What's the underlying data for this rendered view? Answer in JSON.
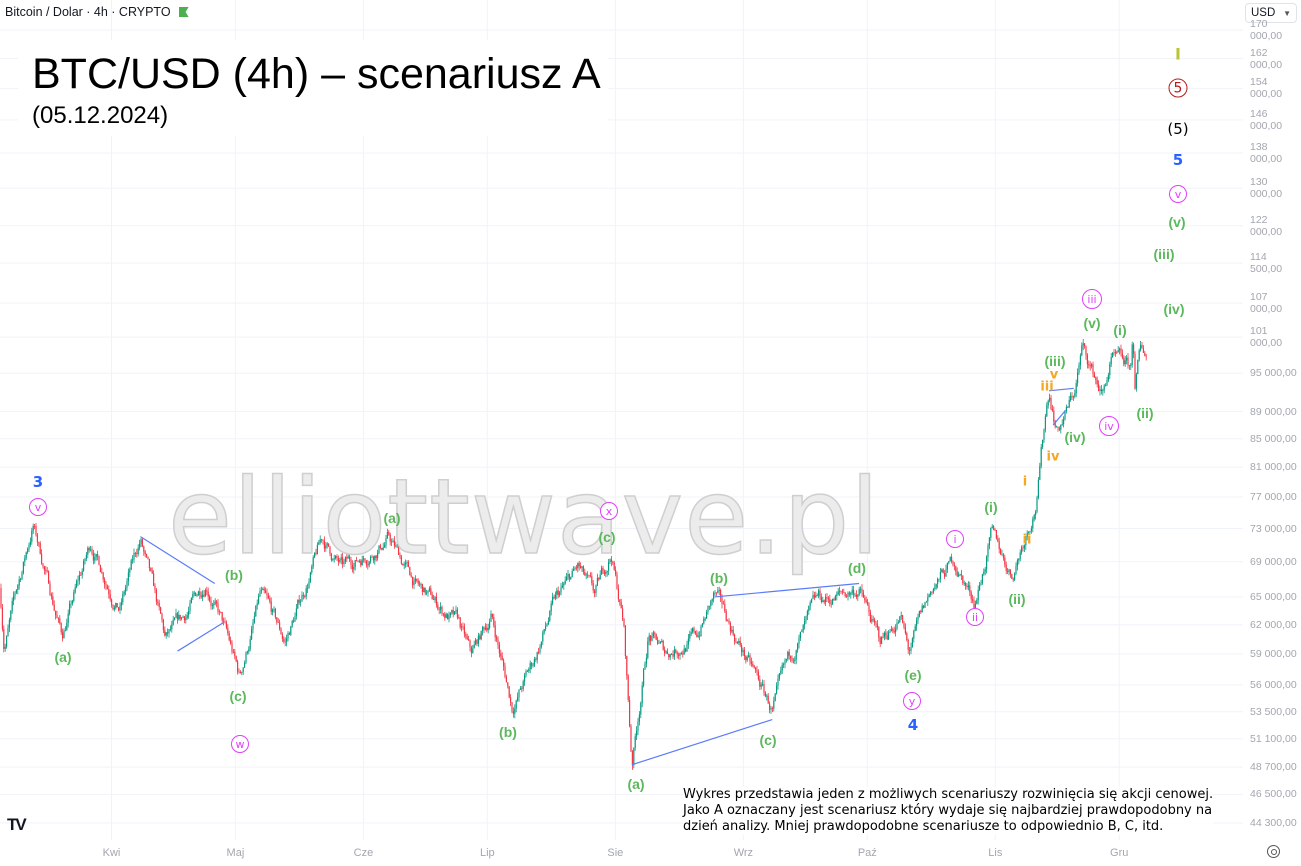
{
  "header": {
    "symbol": "Bitcoin / Dolar · 4h · CRYPTO",
    "currency": "USD"
  },
  "annotation": {
    "title": "BTC/USD (4h) – scenariusz A",
    "date": "(05.12.2024)",
    "watermark": "elliottwave.pl",
    "description": [
      "Wykres przedstawia jeden z możliwych scenariuszy rozwinięcia się akcji cenowej.",
      "Jako A oznaczany jest scenariusz który wydaje się najbardziej prawdopodobny na",
      "dzień analizy. Mniej prawdopodobne scenariusze to odpowiednio B, C, itd."
    ]
  },
  "colors": {
    "up": "#089981",
    "down": "#f23645",
    "trendline": "#5b7cfa",
    "grid": "#f0f3fa"
  },
  "wave_labels": [
    "3",
    "v",
    "(a)",
    "(b)",
    "(c)",
    "w",
    "(a)",
    "(b)",
    "x",
    "(c)",
    "(a)",
    "(b)",
    "(c)",
    "(d)",
    "(e)",
    "y",
    "4",
    "i",
    "ii",
    "(i)",
    "(ii)",
    "i",
    "ii",
    "iv",
    "iii",
    "v",
    "(iii)",
    "(iv)",
    "iii",
    "(v)",
    "(i)",
    "iv",
    "(ii)",
    "(iv)",
    "(iii)",
    "(v)",
    "v",
    "5",
    "(5)",
    "5",
    "I"
  ],
  "chart_data": {
    "type": "candlestick",
    "title": "",
    "timeframe": "4h",
    "y_scale": "log",
    "ylim": [
      43500,
      172000
    ],
    "grid": true,
    "x_tick_labels": [
      "Kwi",
      "Maj",
      "Cze",
      "Lip",
      "Sie",
      "Wrz",
      "Paź",
      "Lis",
      "Gru"
    ],
    "x_tick_dates": [
      "2024-04-01",
      "2024-05-01",
      "2024-06-01",
      "2024-07-01",
      "2024-08-01",
      "2024-09-01",
      "2024-10-01",
      "2024-11-01",
      "2024-12-01"
    ],
    "y_tick_labels": [
      "170 000,00",
      "162 000,00",
      "154 000,00",
      "146 000,00",
      "138 000,00",
      "130 000,00",
      "122 000,00",
      "114 500,00",
      "107 000,00",
      "101 000,00",
      "95 000,00",
      "89 000,00",
      "85 000,00",
      "81 000,00",
      "77 000,00",
      "73 000,00",
      "69 000,00",
      "65 000,00",
      "62 000,00",
      "59 000,00",
      "56 000,00",
      "53 500,00",
      "51 100,00",
      "48 700,00",
      "46 500,00",
      "44 300,00"
    ],
    "price_path": [
      [
        "2024-03-05",
        66000
      ],
      [
        "2024-03-06",
        60000
      ],
      [
        "2024-03-13",
        73500
      ],
      [
        "2024-03-20",
        61000
      ],
      [
        "2024-03-27",
        71000
      ],
      [
        "2024-04-03",
        64000
      ],
      [
        "2024-04-08",
        71500
      ],
      [
        "2024-04-14",
        60000
      ],
      [
        "2024-04-18",
        62000
      ],
      [
        "2024-04-24",
        67000
      ],
      [
        "2024-04-28",
        62000
      ],
      [
        "2024-05-02",
        56500
      ],
      [
        "2024-05-07",
        65000
      ],
      [
        "2024-05-13",
        60000
      ],
      [
        "2024-05-22",
        71500
      ],
      [
        "2024-05-27",
        68000
      ],
      [
        "2024-06-07",
        72000
      ],
      [
        "2024-06-14",
        66000
      ],
      [
        "2024-06-24",
        62000
      ],
      [
        "2024-06-27",
        58500
      ],
      [
        "2024-07-02",
        63000
      ],
      [
        "2024-07-07",
        54000
      ],
      [
        "2024-07-12",
        58000
      ],
      [
        "2024-07-17",
        64000
      ],
      [
        "2024-07-23",
        68000
      ],
      [
        "2024-07-27",
        64500
      ],
      [
        "2024-07-31",
        70000
      ],
      [
        "2024-08-03",
        62000
      ],
      [
        "2024-08-05",
        49000
      ],
      [
        "2024-08-09",
        61000
      ],
      [
        "2024-08-13",
        59000
      ],
      [
        "2024-08-21",
        61000
      ],
      [
        "2024-08-25",
        65000
      ],
      [
        "2024-08-31",
        60000
      ],
      [
        "2024-09-08",
        53500
      ],
      [
        "2024-09-14",
        60000
      ],
      [
        "2024-09-19",
        64000
      ],
      [
        "2024-09-29",
        66000
      ],
      [
        "2024-10-04",
        60000
      ],
      [
        "2024-10-09",
        63000
      ],
      [
        "2024-10-11",
        59000
      ],
      [
        "2024-10-17",
        66000
      ],
      [
        "2024-10-22",
        69000
      ],
      [
        "2024-10-27",
        64500
      ],
      [
        "2024-10-31",
        72000
      ],
      [
        "2024-11-05",
        67500
      ],
      [
        "2024-11-11",
        77000
      ],
      [
        "2024-11-13",
        88000
      ],
      [
        "2024-11-14",
        92500
      ],
      [
        "2024-11-16",
        86500
      ],
      [
        "2024-11-20",
        91500
      ],
      [
        "2024-11-22",
        99000
      ],
      [
        "2024-11-27",
        91500
      ],
      [
        "2024-11-29",
        97000
      ],
      [
        "2024-12-04",
        95000
      ],
      [
        "2024-12-05",
        103500
      ],
      [
        "2024-12-05",
        92000
      ],
      [
        "2024-12-06",
        98000
      ]
    ],
    "trendlines": [
      [
        [
          "2024-04-08",
          72000
        ],
        [
          "2024-04-26",
          66500
        ]
      ],
      [
        [
          "2024-04-17",
          59300
        ],
        [
          "2024-04-28",
          62200
        ]
      ],
      [
        [
          "2024-08-05",
          48900
        ],
        [
          "2024-09-08",
          52800
        ]
      ],
      [
        [
          "2024-08-25",
          65000
        ],
        [
          "2024-09-29",
          66500
        ]
      ],
      [
        [
          "2024-11-14",
          92200
        ],
        [
          "2024-11-20",
          92600
        ]
      ],
      [
        [
          "2024-11-15",
          87000
        ],
        [
          "2024-11-18",
          89200
        ]
      ]
    ]
  }
}
